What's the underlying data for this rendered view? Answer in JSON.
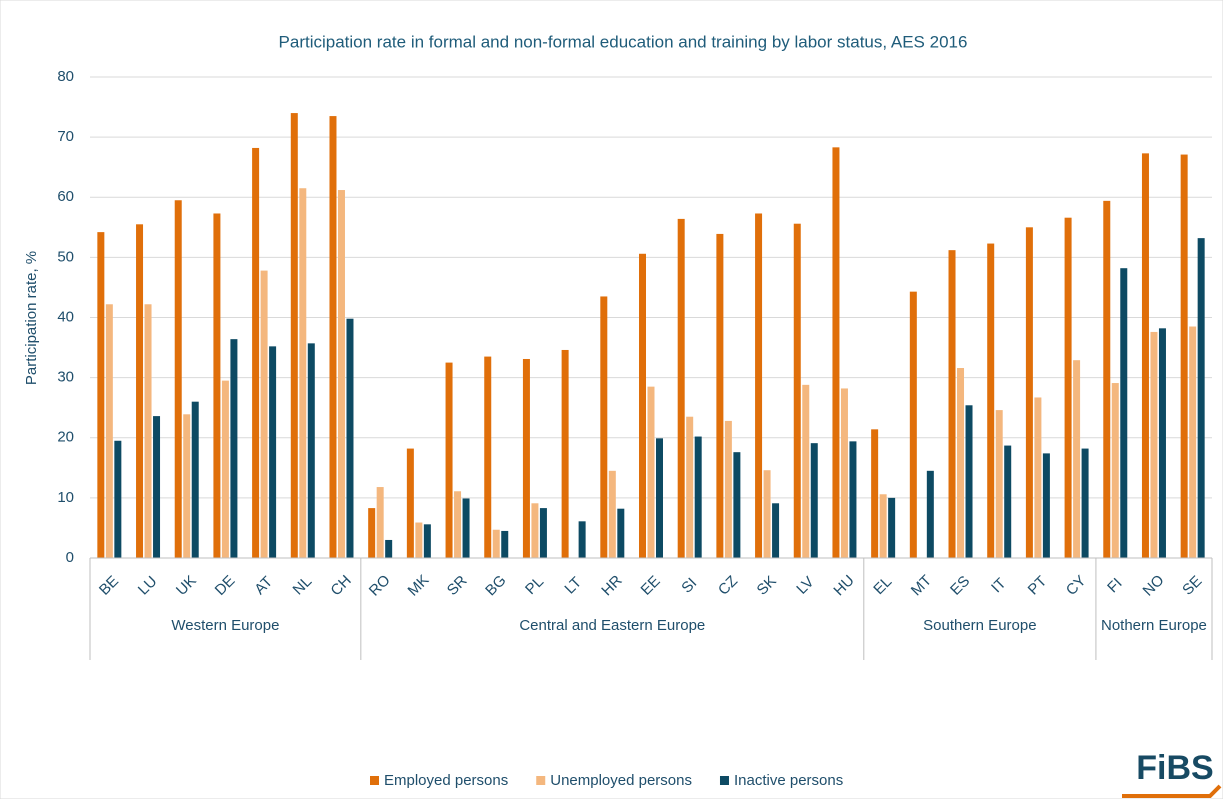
{
  "chart_data": {
    "type": "bar",
    "title": "Participation rate in formal and non-formal education and training by labor status, AES 2016",
    "y_label": "Participation rate, %",
    "groups": [
      {
        "name": "Western Europe",
        "categories": [
          "BE",
          "LU",
          "UK",
          "DE",
          "AT",
          "NL",
          "CH"
        ]
      },
      {
        "name": "Central and Eastern Europe",
        "categories": [
          "RO",
          "MK",
          "SR",
          "BG",
          "PL",
          "LT",
          "HR",
          "EE",
          "SI",
          "CZ",
          "SK",
          "LV",
          "HU"
        ]
      },
      {
        "name": "Southern Europe",
        "categories": [
          "EL",
          "MT",
          "ES",
          "IT",
          "PT",
          "CY"
        ]
      },
      {
        "name": "Nothern Europe",
        "categories": [
          "FI",
          "NO",
          "SE"
        ]
      }
    ],
    "series": [
      {
        "name": "Employed persons",
        "color": "#e06f0a",
        "values": [
          54.2,
          55.5,
          59.5,
          57.3,
          68.2,
          74.0,
          73.5,
          8.3,
          18.2,
          32.5,
          33.5,
          33.1,
          34.6,
          43.5,
          50.6,
          56.4,
          53.9,
          57.3,
          55.6,
          68.3,
          21.4,
          44.3,
          51.2,
          52.3,
          55.0,
          56.6,
          59.4,
          67.3,
          67.1
        ]
      },
      {
        "name": "Unemployed persons",
        "color": "#f4b77e",
        "values": [
          42.2,
          42.2,
          23.9,
          29.5,
          47.8,
          61.5,
          61.2,
          11.8,
          5.9,
          11.1,
          4.7,
          9.1,
          null,
          14.5,
          28.5,
          23.5,
          22.8,
          14.6,
          28.8,
          28.2,
          10.6,
          null,
          31.6,
          24.6,
          26.7,
          32.9,
          29.1,
          37.6,
          38.5
        ]
      },
      {
        "name": "Inactive persons",
        "color": "#0d4a63",
        "values": [
          19.5,
          23.6,
          26.0,
          36.4,
          35.2,
          35.7,
          39.8,
          3.0,
          5.6,
          9.9,
          4.5,
          8.3,
          6.1,
          8.2,
          19.9,
          20.2,
          17.6,
          9.1,
          19.1,
          19.4,
          10.0,
          14.5,
          25.4,
          18.7,
          17.4,
          18.2,
          48.2,
          38.2,
          53.2
        ]
      }
    ],
    "ylim": [
      0,
      80
    ],
    "yticks": [
      0,
      10,
      20,
      30,
      40,
      50,
      60,
      70,
      80
    ],
    "grid": true,
    "legend": "bottom"
  },
  "logo": "FiBS"
}
